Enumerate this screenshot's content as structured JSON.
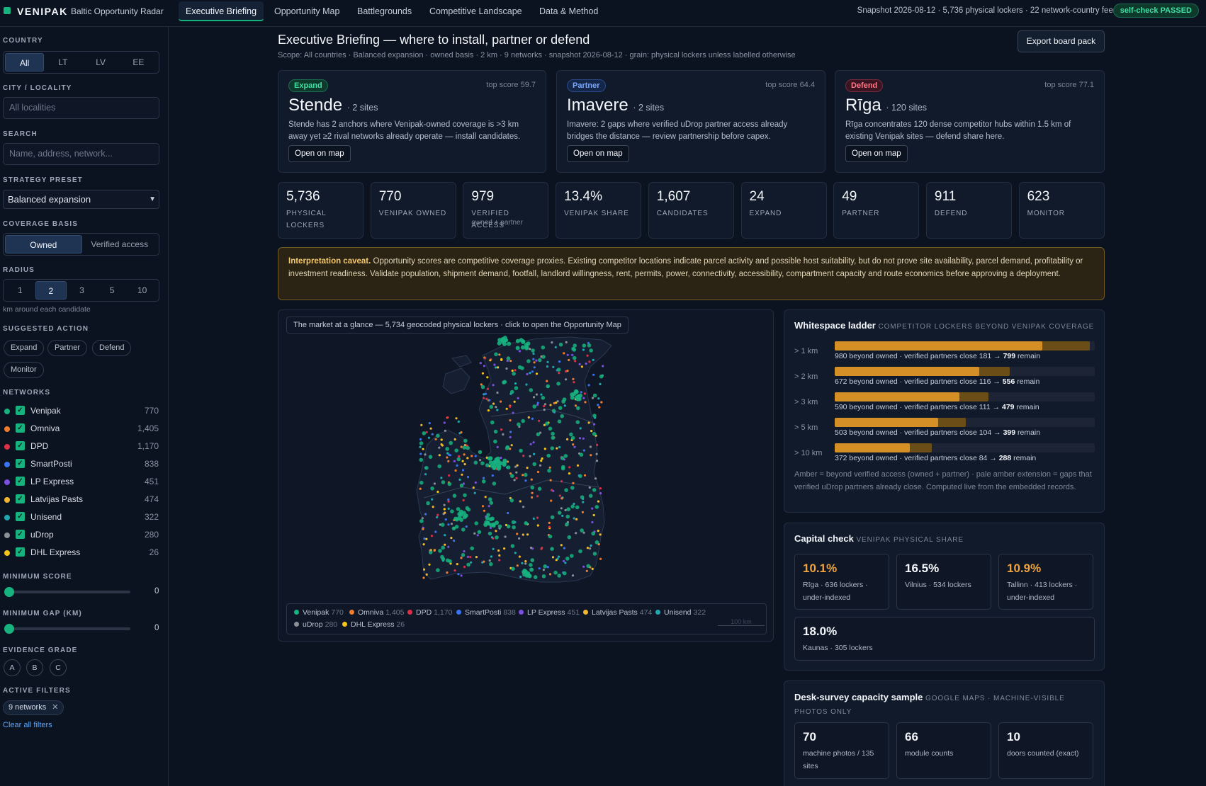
{
  "app": {
    "brand": "VENIPAK",
    "subtitle": "Baltic Opportunity Radar"
  },
  "tabs": [
    {
      "label": "Executive Briefing",
      "active": true
    },
    {
      "label": "Opportunity Map"
    },
    {
      "label": "Battlegrounds"
    },
    {
      "label": "Competitive Landscape"
    },
    {
      "label": "Data & Method"
    }
  ],
  "header": {
    "snapshot": "Snapshot 2026-08-12 · 5,736 physical lockers · 22 network-country feeds",
    "self_check": "self-check PASSED"
  },
  "sidebar": {
    "country_label": "COUNTRY",
    "countries": [
      "All",
      "LT",
      "LV",
      "EE"
    ],
    "city_label": "CITY / LOCALITY",
    "city_placeholder": "All localities",
    "search_label": "SEARCH",
    "search_placeholder": "Name, address, network...",
    "preset_label": "STRATEGY PRESET",
    "preset_value": "Balanced expansion",
    "coverage_label": "COVERAGE BASIS",
    "coverage_options": [
      "Owned",
      "Verified access"
    ],
    "radius_label": "RADIUS",
    "radius_options": [
      "1",
      "2",
      "3",
      "5",
      "10"
    ],
    "radius_note": "km around each candidate",
    "action_label": "SUGGESTED ACTION",
    "actions": [
      "Expand",
      "Partner",
      "Defend",
      "Monitor"
    ],
    "networks_label": "NETWORKS",
    "networks": [
      {
        "name": "Venipak",
        "count": "770",
        "color": "#16b37f"
      },
      {
        "name": "Omniva",
        "count": "1,405",
        "color": "#f07c2e"
      },
      {
        "name": "DPD",
        "count": "1,170",
        "color": "#dd2f45"
      },
      {
        "name": "SmartPosti",
        "count": "838",
        "color": "#3b72f0"
      },
      {
        "name": "LP Express",
        "count": "451",
        "color": "#7c4fe0"
      },
      {
        "name": "Latvijas Pasts",
        "count": "474",
        "color": "#f2b630"
      },
      {
        "name": "Unisend",
        "count": "322",
        "color": "#1ea7b0"
      },
      {
        "name": "uDrop",
        "count": "280",
        "color": "#8b8f96"
      },
      {
        "name": "DHL Express",
        "count": "26",
        "color": "#f5c518"
      }
    ],
    "min_score_label": "MINIMUM SCORE",
    "min_score_value": "0",
    "min_gap_label": "MINIMUM GAP (KM)",
    "min_gap_value": "0",
    "evidence_label": "EVIDENCE GRADE",
    "grades": [
      "A",
      "B",
      "C"
    ],
    "active_filters_label": "ACTIVE FILTERS",
    "active_filter_chip": "9 networks",
    "clear_filters": "Clear all filters"
  },
  "main": {
    "title": "Executive Briefing — where to install, partner or defend",
    "scope": "Scope: All countries · Balanced expansion · owned basis · 2 km · 9 networks · snapshot 2026-08-12 · grain: physical lockers unless labelled otherwise",
    "export_label": "Export board pack",
    "action_cards": [
      {
        "tag": "Expand",
        "top_score": "top score 59.7",
        "place": "Stende",
        "sites": "· 2 sites",
        "desc": "Stende has 2 anchors where Venipak-owned coverage is >3 km away yet ≥2 rival networks already operate — install candidates.",
        "button": "Open on map",
        "color": "#3fe0a4"
      },
      {
        "tag": "Partner",
        "top_score": "top score 64.4",
        "place": "Imavere",
        "sites": "· 2 sites",
        "desc": "Imavere: 2 gaps where verified uDrop partner access already bridges the distance — review partnership before capex.",
        "button": "Open on map",
        "color": "#7aa7ff"
      },
      {
        "tag": "Defend",
        "top_score": "top score 77.1",
        "place": "Rīga",
        "sites": "· 120 sites",
        "desc": "Rīga concentrates 120 dense competitor hubs within 1.5 km of existing Venipak sites — defend share here.",
        "button": "Open on map",
        "color": "#ff7b8a"
      }
    ],
    "kpis": [
      {
        "value": "5,736",
        "label": "PHYSICAL LOCKERS",
        "sub": ""
      },
      {
        "value": "770",
        "label": "VENIPAK OWNED",
        "sub": ""
      },
      {
        "value": "979",
        "label": "VERIFIED ACCESS",
        "sub": "owned + partner"
      },
      {
        "value": "13.4%",
        "label": "VENIPAK SHARE",
        "sub": ""
      },
      {
        "value": "1,607",
        "label": "CANDIDATES",
        "sub": ""
      },
      {
        "value": "24",
        "label": "EXPAND",
        "sub": ""
      },
      {
        "value": "49",
        "label": "PARTNER",
        "sub": ""
      },
      {
        "value": "911",
        "label": "DEFEND",
        "sub": ""
      },
      {
        "value": "623",
        "label": "MONITOR",
        "sub": ""
      }
    ],
    "caveat_bold": "Interpretation caveat.",
    "caveat_text": "Opportunity scores are competitive coverage proxies. Existing competitor locations indicate parcel activity and possible host suitability, but do not prove site availability, parcel demand, profitability or investment readiness. Validate population, shipment demand, footfall, landlord willingness, rent, permits, power, connectivity, accessibility, compartment capacity and route economics before approving a deployment.",
    "map_caption": "The market at a glance — 5,734 geocoded physical lockers · click to open the Opportunity Map",
    "map_scale": "100 km"
  },
  "whitespace": {
    "title": "Whitespace ladder",
    "subtitle": "COMPETITOR LOCKERS BEYOND VENIPAK COVERAGE",
    "rows": [
      {
        "label": "> 1 km",
        "text": "980 beyond owned · verified partners close 181 → ",
        "remain": "799",
        "suffix": " remain",
        "beyond": 980,
        "remaining": 799
      },
      {
        "label": "> 2 km",
        "text": "672 beyond owned · verified partners close 116 → ",
        "remain": "556",
        "suffix": " remain",
        "beyond": 672,
        "remaining": 556
      },
      {
        "label": "> 3 km",
        "text": "590 beyond owned · verified partners close 111 → ",
        "remain": "479",
        "suffix": " remain",
        "beyond": 590,
        "remaining": 479
      },
      {
        "label": "> 5 km",
        "text": "503 beyond owned · verified partners close 104 → ",
        "remain": "399",
        "suffix": " remain",
        "beyond": 503,
        "remaining": 399
      },
      {
        "label": "> 10 km",
        "text": "372 beyond owned · verified partners close 84 → ",
        "remain": "288",
        "suffix": " remain",
        "beyond": 372,
        "remaining": 288
      }
    ],
    "note": "Amber = beyond verified access (owned + partner) · pale amber extension = gaps that verified uDrop partners already close. Computed live from the embedded records."
  },
  "capital": {
    "title": "Capital check",
    "subtitle": "VENIPAK PHYSICAL SHARE",
    "tiles": [
      {
        "value": "10.1%",
        "label": "Rīga · 636 lockers · under-indexed",
        "color": "#f0a33a"
      },
      {
        "value": "16.5%",
        "label": "Vilnius · 534 lockers",
        "color": "#f3f6fa"
      },
      {
        "value": "10.9%",
        "label": "Tallinn · 413 lockers · under-indexed",
        "color": "#f0a33a"
      },
      {
        "value": "18.0%",
        "label": "Kaunas · 305 lockers",
        "color": "#f3f6fa"
      }
    ]
  },
  "desk_survey": {
    "title": "Desk-survey capacity sample",
    "subtitle": "GOOGLE MAPS · MACHINE-VISIBLE PHOTOS ONLY",
    "tiles": [
      {
        "value": "70",
        "label": "machine photos / 135 sites"
      },
      {
        "value": "66",
        "label": "module counts"
      },
      {
        "value": "10",
        "label": "doors counted (exact)"
      }
    ]
  }
}
